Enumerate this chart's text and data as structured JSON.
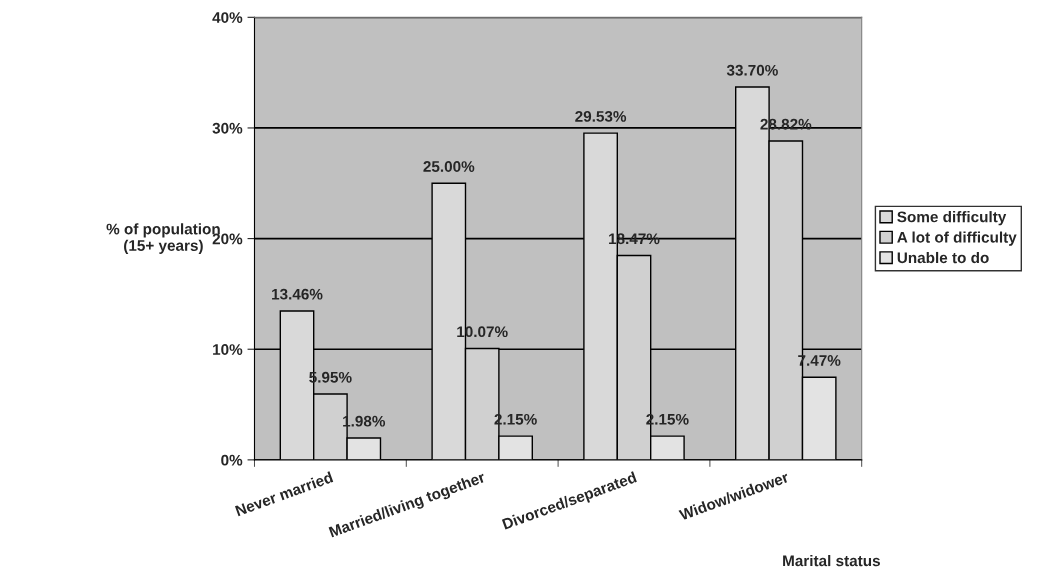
{
  "chart_data": {
    "type": "bar",
    "xlabel": "Marital status",
    "ylabel": "% of population\n(15+ years)",
    "categories": [
      "Never married",
      "Married/living together",
      "Divorced/separated",
      "Widow/widower"
    ],
    "series": [
      {
        "name": "Some difficulty",
        "color": "#d9d9d9",
        "values": [
          13.46,
          25.0,
          29.53,
          33.7
        ],
        "value_labels": [
          "13.46%",
          "25.00%",
          "29.53%",
          "33.70%"
        ]
      },
      {
        "name": "A lot of difficulty",
        "color": "#d0d0d0",
        "values": [
          5.95,
          10.07,
          18.47,
          28.82
        ],
        "value_labels": [
          "5.95%",
          "10.07%",
          "18.47%",
          "28.82%"
        ]
      },
      {
        "name": "Unable to do",
        "color": "#e3e3e3",
        "values": [
          1.98,
          2.15,
          2.15,
          7.47
        ],
        "value_labels": [
          "1.98%",
          "2.15%",
          "2.15%",
          "7.47%"
        ]
      }
    ],
    "ylim": [
      0,
      40
    ],
    "yticks": [
      {
        "value": 0,
        "label": "0%"
      },
      {
        "value": 10,
        "label": "10%"
      },
      {
        "value": 20,
        "label": "20%"
      },
      {
        "value": 30,
        "label": "30%"
      },
      {
        "value": 40,
        "label": "40%"
      }
    ],
    "grid": "y",
    "legend": "right"
  }
}
